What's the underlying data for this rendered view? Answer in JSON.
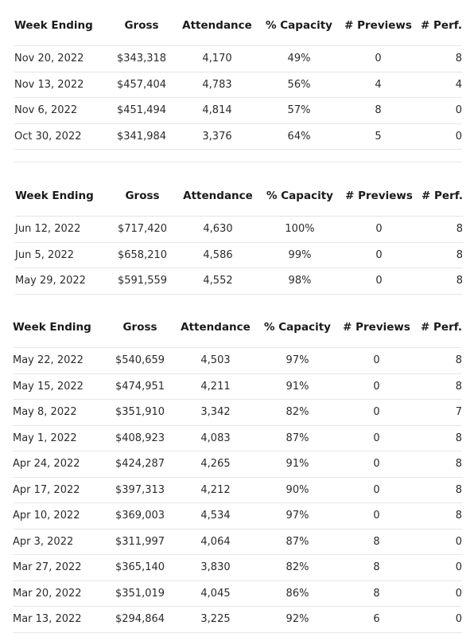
{
  "headers": {
    "week": "Week Ending",
    "gross": "Gross",
    "attendance": "Attendance",
    "capacity": "% Capacity",
    "previews": "# Previews",
    "perf": "# Perf."
  },
  "tables": [
    {
      "rows": [
        {
          "week": "Nov 20, 2022",
          "gross": "$343,318",
          "attendance": "4,170",
          "capacity": "49%",
          "previews": "0",
          "perf": "8"
        },
        {
          "week": "Nov 13, 2022",
          "gross": "$457,404",
          "attendance": "4,783",
          "capacity": "56%",
          "previews": "4",
          "perf": "4"
        },
        {
          "week": "Nov 6, 2022",
          "gross": "$451,494",
          "attendance": "4,814",
          "capacity": "57%",
          "previews": "8",
          "perf": "0"
        },
        {
          "week": "Oct 30, 2022",
          "gross": "$341,984",
          "attendance": "3,376",
          "capacity": "64%",
          "previews": "5",
          "perf": "0"
        }
      ]
    },
    {
      "rows": [
        {
          "week": "Jun 12, 2022",
          "gross": "$717,420",
          "attendance": "4,630",
          "capacity": "100%",
          "previews": "0",
          "perf": "8"
        },
        {
          "week": "Jun 5, 2022",
          "gross": "$658,210",
          "attendance": "4,586",
          "capacity": "99%",
          "previews": "0",
          "perf": "8"
        },
        {
          "week": "May 29, 2022",
          "gross": "$591,559",
          "attendance": "4,552",
          "capacity": "98%",
          "previews": "0",
          "perf": "8"
        }
      ]
    },
    {
      "rows": [
        {
          "week": "May 22, 2022",
          "gross": "$540,659",
          "attendance": "4,503",
          "capacity": "97%",
          "previews": "0",
          "perf": "8"
        },
        {
          "week": "May 15, 2022",
          "gross": "$474,951",
          "attendance": "4,211",
          "capacity": "91%",
          "previews": "0",
          "perf": "8"
        },
        {
          "week": "May 8, 2022",
          "gross": "$351,910",
          "attendance": "3,342",
          "capacity": "82%",
          "previews": "0",
          "perf": "7"
        },
        {
          "week": "May 1, 2022",
          "gross": "$408,923",
          "attendance": "4,083",
          "capacity": "87%",
          "previews": "0",
          "perf": "8"
        },
        {
          "week": "Apr 24, 2022",
          "gross": "$424,287",
          "attendance": "4,265",
          "capacity": "91%",
          "previews": "0",
          "perf": "8"
        },
        {
          "week": "Apr 17, 2022",
          "gross": "$397,313",
          "attendance": "4,212",
          "capacity": "90%",
          "previews": "0",
          "perf": "8"
        },
        {
          "week": "Apr 10, 2022",
          "gross": "$369,003",
          "attendance": "4,534",
          "capacity": "97%",
          "previews": "0",
          "perf": "8"
        },
        {
          "week": "Apr 3, 2022",
          "gross": "$311,997",
          "attendance": "4,064",
          "capacity": "87%",
          "previews": "8",
          "perf": "0"
        },
        {
          "week": "Mar 27, 2022",
          "gross": "$365,140",
          "attendance": "3,830",
          "capacity": "82%",
          "previews": "8",
          "perf": "0"
        },
        {
          "week": "Mar 20, 2022",
          "gross": "$351,019",
          "attendance": "4,045",
          "capacity": "86%",
          "previews": "8",
          "perf": "0"
        },
        {
          "week": "Mar 13, 2022",
          "gross": "$294,864",
          "attendance": "3,225",
          "capacity": "92%",
          "previews": "6",
          "perf": "0"
        }
      ]
    }
  ]
}
